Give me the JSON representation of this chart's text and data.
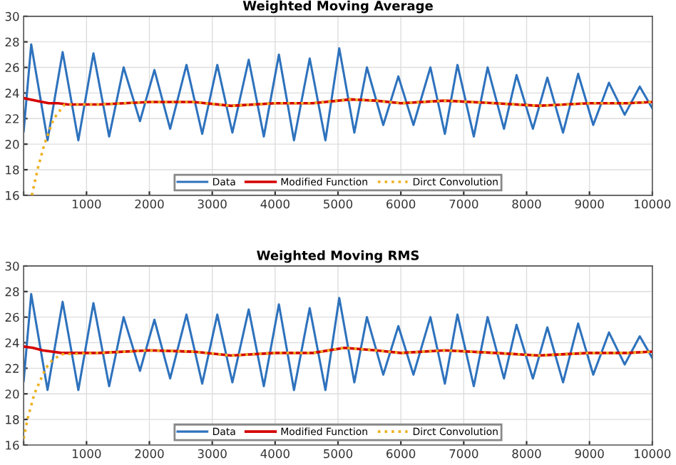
{
  "chart_data": [
    {
      "type": "line",
      "title": "Weighted Moving Average",
      "xlim": [
        0,
        10000
      ],
      "xticks": [
        {
          "value": 0,
          "label": null
        },
        1000,
        2000,
        3000,
        4000,
        5000,
        6000,
        7000,
        8000,
        9000,
        10000
      ],
      "ylim": [
        16,
        30
      ],
      "yticks": [
        16,
        18,
        20,
        22,
        24,
        26,
        28,
        30
      ],
      "grid": true,
      "legend": "bottom",
      "series": [
        {
          "name": "Data",
          "color": "#2e72bd",
          "line_style": "solid",
          "x": [
            0,
            120,
            380,
            620,
            870,
            1110,
            1360,
            1590,
            1850,
            2080,
            2330,
            2590,
            2840,
            3080,
            3320,
            3580,
            3820,
            4060,
            4300,
            4550,
            4800,
            5020,
            5260,
            5460,
            5720,
            5960,
            6200,
            6470,
            6700,
            6900,
            7160,
            7380,
            7640,
            7840,
            8100,
            8330,
            8580,
            8820,
            9060,
            9310,
            9560,
            9800,
            10000
          ],
          "values": [
            21.0,
            27.8,
            20.3,
            27.2,
            20.3,
            27.1,
            20.6,
            26.0,
            21.8,
            25.8,
            21.2,
            26.2,
            20.8,
            26.2,
            20.9,
            26.6,
            20.6,
            27.0,
            20.3,
            26.7,
            20.3,
            27.5,
            20.9,
            26.0,
            21.5,
            25.3,
            21.5,
            26.0,
            20.8,
            26.2,
            20.6,
            26.0,
            21.2,
            25.4,
            21.2,
            25.2,
            20.9,
            25.5,
            21.5,
            24.8,
            22.3,
            24.5,
            22.8
          ]
        },
        {
          "name": "Modified Function",
          "color": "#d40000",
          "line_style": "solid",
          "x": [
            0,
            200,
            400,
            550,
            700,
            1200,
            2000,
            2700,
            3300,
            4000,
            4600,
            5200,
            5600,
            6000,
            6700,
            7500,
            8200,
            9000,
            9600,
            10000
          ],
          "values": [
            23.6,
            23.4,
            23.2,
            23.2,
            23.1,
            23.1,
            23.3,
            23.3,
            23.0,
            23.2,
            23.2,
            23.5,
            23.4,
            23.2,
            23.4,
            23.2,
            23.0,
            23.2,
            23.2,
            23.3
          ]
        },
        {
          "name": "Dirct Convolution",
          "color": "#edb120",
          "line_style": "dotted",
          "x": [
            130,
            230,
            330,
            480,
            650,
            700,
            1200,
            2000,
            2700,
            3300,
            4000,
            4600,
            5200,
            5600,
            6000,
            6700,
            7500,
            8200,
            9000,
            9600,
            10000
          ],
          "values": [
            16.0,
            18.2,
            20.0,
            22.0,
            23.1,
            23.1,
            23.1,
            23.3,
            23.3,
            23.0,
            23.2,
            23.2,
            23.5,
            23.4,
            23.2,
            23.4,
            23.2,
            23.0,
            23.2,
            23.2,
            23.3
          ]
        }
      ]
    },
    {
      "type": "line",
      "title": "Weighted Moving RMS",
      "xlim": [
        0,
        10000
      ],
      "xticks": [
        {
          "value": 0,
          "label": null
        },
        1000,
        2000,
        3000,
        4000,
        5000,
        6000,
        7000,
        8000,
        9000,
        10000
      ],
      "ylim": [
        16,
        30
      ],
      "yticks": [
        16,
        18,
        20,
        22,
        24,
        26,
        28,
        30
      ],
      "grid": true,
      "legend": "bottom",
      "series": [
        {
          "name": "Data",
          "color": "#2e72bd",
          "line_style": "solid",
          "x": [
            0,
            120,
            380,
            620,
            870,
            1110,
            1360,
            1590,
            1850,
            2080,
            2330,
            2590,
            2840,
            3080,
            3320,
            3580,
            3820,
            4060,
            4300,
            4550,
            4800,
            5020,
            5260,
            5460,
            5720,
            5960,
            6200,
            6470,
            6700,
            6900,
            7160,
            7380,
            7640,
            7840,
            8100,
            8330,
            8580,
            8820,
            9060,
            9310,
            9560,
            9800,
            10000
          ],
          "values": [
            21.0,
            27.8,
            20.3,
            27.2,
            20.3,
            27.1,
            20.6,
            26.0,
            21.8,
            25.8,
            21.2,
            26.2,
            20.8,
            26.2,
            20.9,
            26.6,
            20.6,
            27.0,
            20.3,
            26.7,
            20.3,
            27.5,
            20.9,
            26.0,
            21.5,
            25.3,
            21.5,
            26.0,
            20.8,
            26.2,
            20.6,
            26.0,
            21.2,
            25.4,
            21.2,
            25.2,
            20.9,
            25.5,
            21.5,
            24.8,
            22.3,
            24.5,
            22.8
          ]
        },
        {
          "name": "Modified Function",
          "color": "#d40000",
          "line_style": "solid",
          "x": [
            0,
            150,
            300,
            450,
            600,
            1200,
            2000,
            2700,
            3300,
            4000,
            4600,
            5100,
            5600,
            6000,
            6700,
            7500,
            8200,
            9000,
            9600,
            10000
          ],
          "values": [
            23.7,
            23.6,
            23.4,
            23.3,
            23.2,
            23.2,
            23.4,
            23.3,
            23.0,
            23.2,
            23.2,
            23.6,
            23.4,
            23.2,
            23.4,
            23.2,
            23.0,
            23.2,
            23.2,
            23.3
          ]
        },
        {
          "name": "Dirct Convolution",
          "color": "#edb120",
          "line_style": "dotted",
          "x": [
            0,
            60,
            170,
            350,
            450,
            600,
            1200,
            2000,
            2700,
            3300,
            4000,
            4600,
            5100,
            5600,
            6000,
            6700,
            7500,
            8200,
            9000,
            9600,
            10000
          ],
          "values": [
            16.5,
            18.0,
            20.0,
            22.0,
            22.6,
            23.1,
            23.2,
            23.4,
            23.3,
            23.0,
            23.2,
            23.2,
            23.6,
            23.4,
            23.2,
            23.4,
            23.2,
            23.0,
            23.2,
            23.2,
            23.3
          ]
        }
      ]
    }
  ]
}
